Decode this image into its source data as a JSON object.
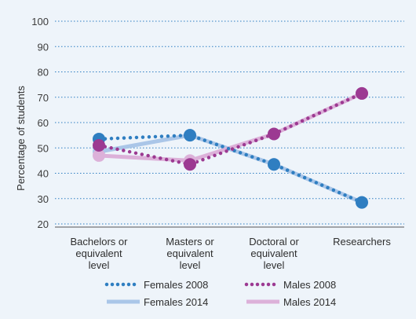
{
  "chart_data": {
    "type": "line",
    "title": "",
    "ylabel": "Percentage of students",
    "xlabel": "",
    "ylim": [
      20,
      100
    ],
    "yticks": [
      20,
      30,
      40,
      50,
      60,
      70,
      80,
      90,
      100
    ],
    "grid": true,
    "legend_position": "bottom",
    "categories": [
      [
        "Bachelors or",
        "equivalent",
        "level"
      ],
      [
        "Masters or",
        "equivalent",
        "level"
      ],
      [
        "Doctoral or",
        "equivalent",
        "level"
      ],
      [
        "Researchers"
      ]
    ],
    "series": [
      {
        "name": "Females 2008",
        "values": [
          53.5,
          55,
          43.5,
          28.5
        ],
        "color": "#2f7ec1",
        "style": "dotted"
      },
      {
        "name": "Females 2014",
        "values": [
          48.5,
          55,
          43.5,
          28.5
        ],
        "color": "#aac6e8",
        "style": "solid"
      },
      {
        "name": "Males 2008",
        "values": [
          51,
          43.5,
          55.5,
          71.5
        ],
        "color": "#9c3a92",
        "style": "dotted"
      },
      {
        "name": "Males 2014",
        "values": [
          47,
          45,
          55.5,
          71.5
        ],
        "color": "#dcb1d9",
        "style": "solid"
      }
    ]
  }
}
